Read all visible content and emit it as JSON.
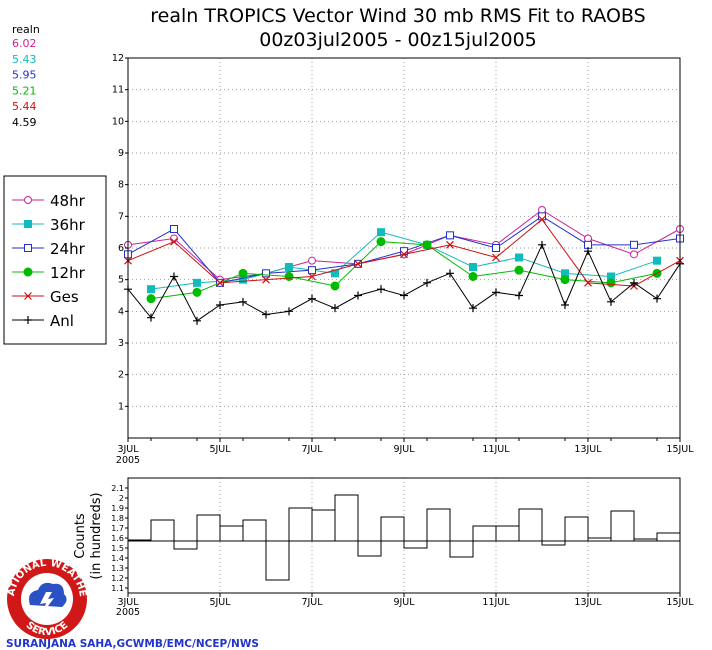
{
  "header": {
    "title": "realn TROPICS Vector Wind 30 mb RMS Fit to RAOBS",
    "subtitle": "00z03jul2005 - 00z15jul2005"
  },
  "stats": {
    "label": "realn",
    "values": [
      {
        "text": "6.02",
        "color": "#cc2299"
      },
      {
        "text": "5.43",
        "color": "#11bbbb"
      },
      {
        "text": "5.95",
        "color": "#2233cc"
      },
      {
        "text": "5.21",
        "color": "#00bb00"
      },
      {
        "text": "5.44",
        "color": "#cc1111"
      },
      {
        "text": "4.59",
        "color": "#000000"
      }
    ]
  },
  "legend": {
    "placement": "left",
    "entries": [
      {
        "text": "48hr",
        "color": "#cc2299",
        "marker": "open-circle"
      },
      {
        "text": "36hr",
        "color": "#11bbbb",
        "marker": "filled-square"
      },
      {
        "text": "24hr",
        "color": "#2233cc",
        "marker": "open-square"
      },
      {
        "text": "12hr",
        "color": "#00bb00",
        "marker": "filled-circle"
      },
      {
        "text": "Ges",
        "color": "#cc1111",
        "marker": "x"
      },
      {
        "text": "Anl",
        "color": "#000000",
        "marker": "plus"
      }
    ]
  },
  "lower_panel": {
    "ylabel_line1": "Counts",
    "ylabel_line2": "(in hundreds)"
  },
  "credit": "SURANJANA SAHA,GCWMB/EMC/NCEP/NWS",
  "logo": {
    "top_text": "NATIONAL WEATHER",
    "bottom_text": "SERVICE"
  },
  "chart_data": [
    {
      "type": "line",
      "x": [
        0,
        0.5,
        1,
        1.5,
        2,
        2.5,
        3,
        3.5,
        4,
        4.5,
        5,
        5.5,
        6,
        6.5,
        7,
        7.5,
        8,
        8.5,
        9,
        9.5,
        10,
        10.5,
        11,
        11.5,
        12
      ],
      "xlim": [
        0,
        12
      ],
      "ylim": [
        0,
        12
      ],
      "yticks": [
        "1",
        "2",
        "3",
        "4",
        "5",
        "6",
        "7",
        "8",
        "9",
        "10",
        "11",
        "12"
      ],
      "xticks": [
        {
          "x": 0,
          "label": "3JUL",
          "sub": "2005"
        },
        {
          "x": 2,
          "label": "5JUL"
        },
        {
          "x": 4,
          "label": "7JUL"
        },
        {
          "x": 6,
          "label": "9JUL"
        },
        {
          "x": 8,
          "label": "11JUL"
        },
        {
          "x": 10,
          "label": "13JUL"
        },
        {
          "x": 12,
          "label": "15JUL"
        }
      ],
      "grid": true,
      "series": [
        {
          "name": "48hr",
          "color": "#cc2299",
          "marker": "open-circle",
          "values": [
            6.1,
            null,
            6.3,
            null,
            5.0,
            null,
            5.2,
            null,
            5.6,
            null,
            5.5,
            null,
            5.8,
            null,
            6.4,
            null,
            6.1,
            null,
            7.2,
            null,
            6.3,
            null,
            5.8,
            null,
            6.6
          ]
        },
        {
          "name": "36hr",
          "color": "#11bbbb",
          "marker": "filled-square",
          "values": [
            null,
            4.7,
            null,
            4.9,
            null,
            5.0,
            null,
            5.4,
            null,
            5.2,
            null,
            6.5,
            null,
            6.1,
            null,
            5.4,
            null,
            5.7,
            null,
            5.2,
            null,
            5.1,
            null,
            5.6,
            null
          ]
        },
        {
          "name": "24hr",
          "color": "#2233cc",
          "marker": "open-square",
          "values": [
            5.8,
            null,
            6.6,
            null,
            4.9,
            null,
            5.2,
            null,
            5.3,
            null,
            5.5,
            null,
            5.9,
            null,
            6.4,
            null,
            6.0,
            null,
            7.0,
            null,
            6.1,
            null,
            6.1,
            null,
            6.3
          ]
        },
        {
          "name": "12hr",
          "color": "#00bb00",
          "marker": "filled-circle",
          "values": [
            null,
            4.4,
            null,
            4.6,
            null,
            5.2,
            null,
            5.1,
            null,
            4.8,
            null,
            6.2,
            null,
            6.1,
            null,
            5.1,
            null,
            5.3,
            null,
            5.0,
            null,
            4.9,
            null,
            5.2,
            null
          ]
        },
        {
          "name": "Ges",
          "color": "#cc1111",
          "marker": "x",
          "values": [
            5.6,
            null,
            6.2,
            null,
            4.9,
            null,
            5.0,
            null,
            5.1,
            null,
            5.5,
            null,
            5.8,
            null,
            6.1,
            null,
            5.7,
            null,
            6.9,
            null,
            4.9,
            null,
            4.8,
            null,
            5.6
          ]
        },
        {
          "name": "Anl",
          "color": "#000000",
          "marker": "plus",
          "values": [
            4.7,
            3.8,
            5.1,
            3.7,
            4.2,
            4.3,
            3.9,
            4.0,
            4.4,
            4.1,
            4.5,
            4.7,
            4.5,
            4.9,
            5.2,
            4.1,
            4.6,
            4.5,
            6.1,
            4.2,
            5.9,
            4.3,
            4.9,
            4.4,
            5.5
          ]
        }
      ]
    },
    {
      "type": "bar",
      "xlim": [
        0,
        12
      ],
      "ylim": [
        1.05,
        2.2
      ],
      "reference": 1.57,
      "yticks": [
        "1.1",
        "1.2",
        "1.3",
        "1.4",
        "1.5",
        "1.6",
        "1.7",
        "1.8",
        "1.9",
        "2",
        "2.1"
      ],
      "xticks": [
        {
          "x": 0,
          "label": "3JUL",
          "sub": "2005"
        },
        {
          "x": 2,
          "label": "5JUL"
        },
        {
          "x": 4,
          "label": "7JUL"
        },
        {
          "x": 6,
          "label": "9JUL"
        },
        {
          "x": 8,
          "label": "11JUL"
        },
        {
          "x": 10,
          "label": "13JUL"
        },
        {
          "x": 12,
          "label": "15JUL"
        }
      ],
      "x": [
        0,
        0.5,
        1,
        1.5,
        2,
        2.5,
        3,
        3.5,
        4,
        4.5,
        5,
        5.5,
        6,
        6.5,
        7,
        7.5,
        8,
        8.5,
        9,
        9.5,
        10,
        10.5,
        11,
        11.5
      ],
      "values": [
        1.58,
        1.78,
        1.49,
        1.83,
        1.72,
        1.78,
        1.18,
        1.9,
        1.88,
        2.03,
        1.42,
        1.81,
        1.5,
        1.89,
        1.41,
        1.72,
        1.72,
        1.89,
        1.53,
        1.81,
        1.6,
        1.87,
        1.59,
        1.65
      ]
    }
  ]
}
